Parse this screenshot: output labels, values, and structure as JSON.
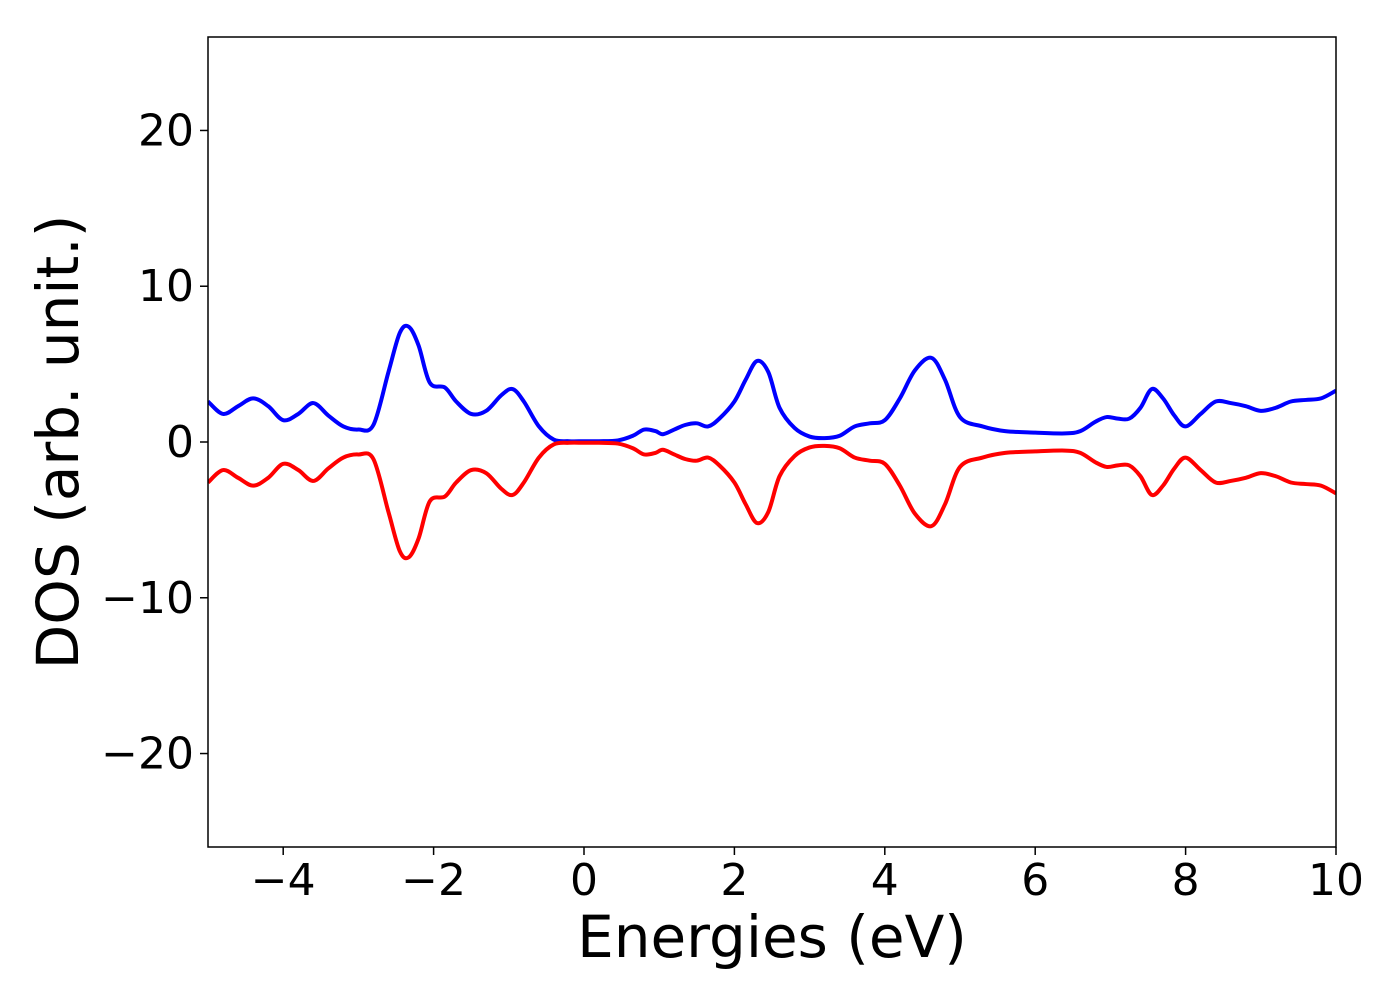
{
  "chart_data": {
    "type": "line",
    "title": "",
    "xlabel": "Energies (eV)",
    "ylabel": "DOS (arb. unit.)",
    "xlim": [
      -5,
      10
    ],
    "ylim": [
      -26,
      26
    ],
    "grid": false,
    "legend": "none",
    "x_ticks": [
      -4,
      -2,
      0,
      2,
      4,
      6,
      8,
      10
    ],
    "x_tick_labels": [
      "−4",
      "−2",
      "0",
      "2",
      "4",
      "6",
      "8",
      "10"
    ],
    "y_ticks": [
      -20,
      -10,
      0,
      10,
      20
    ],
    "y_tick_labels": [
      "−20",
      "−10",
      "0",
      "10",
      "20"
    ],
    "series": [
      {
        "color": "#0000ff",
        "x": [
          -5.0,
          -4.8,
          -4.6,
          -4.4,
          -4.2,
          -4.0,
          -3.8,
          -3.6,
          -3.4,
          -3.2,
          -3.0,
          -2.8,
          -2.6,
          -2.45,
          -2.33,
          -2.2,
          -2.05,
          -1.85,
          -1.7,
          -1.5,
          -1.3,
          -1.1,
          -0.95,
          -0.8,
          -0.6,
          -0.4,
          -0.2,
          0.0,
          0.2,
          0.45,
          0.65,
          0.8,
          0.95,
          1.05,
          1.2,
          1.35,
          1.5,
          1.65,
          1.8,
          2.0,
          2.15,
          2.3,
          2.45,
          2.6,
          2.8,
          3.0,
          3.2,
          3.4,
          3.6,
          3.8,
          4.0,
          4.2,
          4.4,
          4.62,
          4.8,
          5.0,
          5.3,
          5.6,
          6.0,
          6.4,
          6.6,
          6.8,
          6.95,
          7.1,
          7.25,
          7.4,
          7.55,
          7.7,
          7.85,
          8.0,
          8.2,
          8.4,
          8.6,
          8.8,
          9.0,
          9.2,
          9.4,
          9.6,
          9.8,
          10.0
        ],
        "y": [
          2.6,
          1.8,
          2.3,
          2.8,
          2.3,
          1.4,
          1.8,
          2.5,
          1.7,
          1.0,
          0.8,
          1.1,
          4.5,
          7.0,
          7.4,
          6.2,
          3.8,
          3.5,
          2.6,
          1.8,
          2.0,
          3.0,
          3.4,
          2.6,
          1.0,
          0.15,
          0.05,
          0.05,
          0.05,
          0.1,
          0.4,
          0.8,
          0.7,
          0.5,
          0.8,
          1.1,
          1.2,
          1.0,
          1.5,
          2.6,
          4.0,
          5.2,
          4.5,
          2.2,
          0.9,
          0.35,
          0.25,
          0.4,
          1.0,
          1.2,
          1.4,
          2.8,
          4.6,
          5.4,
          4.0,
          1.6,
          1.0,
          0.7,
          0.6,
          0.55,
          0.7,
          1.3,
          1.6,
          1.5,
          1.5,
          2.2,
          3.4,
          2.8,
          1.7,
          1.0,
          1.8,
          2.6,
          2.5,
          2.3,
          2.0,
          2.2,
          2.6,
          2.7,
          2.8,
          3.3
        ]
      },
      {
        "color": "#ff0000",
        "x": [
          -5.0,
          -4.8,
          -4.6,
          -4.4,
          -4.2,
          -4.0,
          -3.8,
          -3.6,
          -3.4,
          -3.2,
          -3.0,
          -2.8,
          -2.6,
          -2.45,
          -2.33,
          -2.2,
          -2.05,
          -1.85,
          -1.7,
          -1.5,
          -1.3,
          -1.1,
          -0.95,
          -0.8,
          -0.6,
          -0.4,
          -0.2,
          0.0,
          0.2,
          0.45,
          0.65,
          0.8,
          0.95,
          1.05,
          1.2,
          1.35,
          1.5,
          1.65,
          1.8,
          2.0,
          2.15,
          2.3,
          2.45,
          2.6,
          2.8,
          3.0,
          3.2,
          3.4,
          3.6,
          3.8,
          4.0,
          4.2,
          4.4,
          4.62,
          4.8,
          5.0,
          5.3,
          5.6,
          6.0,
          6.4,
          6.6,
          6.8,
          6.95,
          7.1,
          7.25,
          7.4,
          7.55,
          7.7,
          7.85,
          8.0,
          8.2,
          8.4,
          8.6,
          8.8,
          9.0,
          9.2,
          9.4,
          9.6,
          9.8,
          10.0
        ],
        "y": [
          -2.6,
          -1.8,
          -2.3,
          -2.8,
          -2.3,
          -1.4,
          -1.8,
          -2.5,
          -1.7,
          -1.0,
          -0.8,
          -1.1,
          -4.5,
          -7.0,
          -7.4,
          -6.2,
          -3.8,
          -3.5,
          -2.6,
          -1.8,
          -2.0,
          -3.0,
          -3.4,
          -2.6,
          -1.0,
          -0.15,
          -0.05,
          -0.05,
          -0.05,
          -0.1,
          -0.4,
          -0.8,
          -0.7,
          -0.5,
          -0.8,
          -1.1,
          -1.2,
          -1.0,
          -1.5,
          -2.6,
          -4.0,
          -5.2,
          -4.5,
          -2.2,
          -0.9,
          -0.35,
          -0.25,
          -0.4,
          -1.0,
          -1.2,
          -1.4,
          -2.8,
          -4.6,
          -5.4,
          -4.0,
          -1.6,
          -1.0,
          -0.7,
          -0.6,
          -0.55,
          -0.7,
          -1.3,
          -1.6,
          -1.5,
          -1.5,
          -2.2,
          -3.4,
          -2.8,
          -1.7,
          -1.0,
          -1.8,
          -2.6,
          -2.5,
          -2.3,
          -2.0,
          -2.2,
          -2.6,
          -2.7,
          -2.8,
          -3.3
        ]
      }
    ]
  }
}
